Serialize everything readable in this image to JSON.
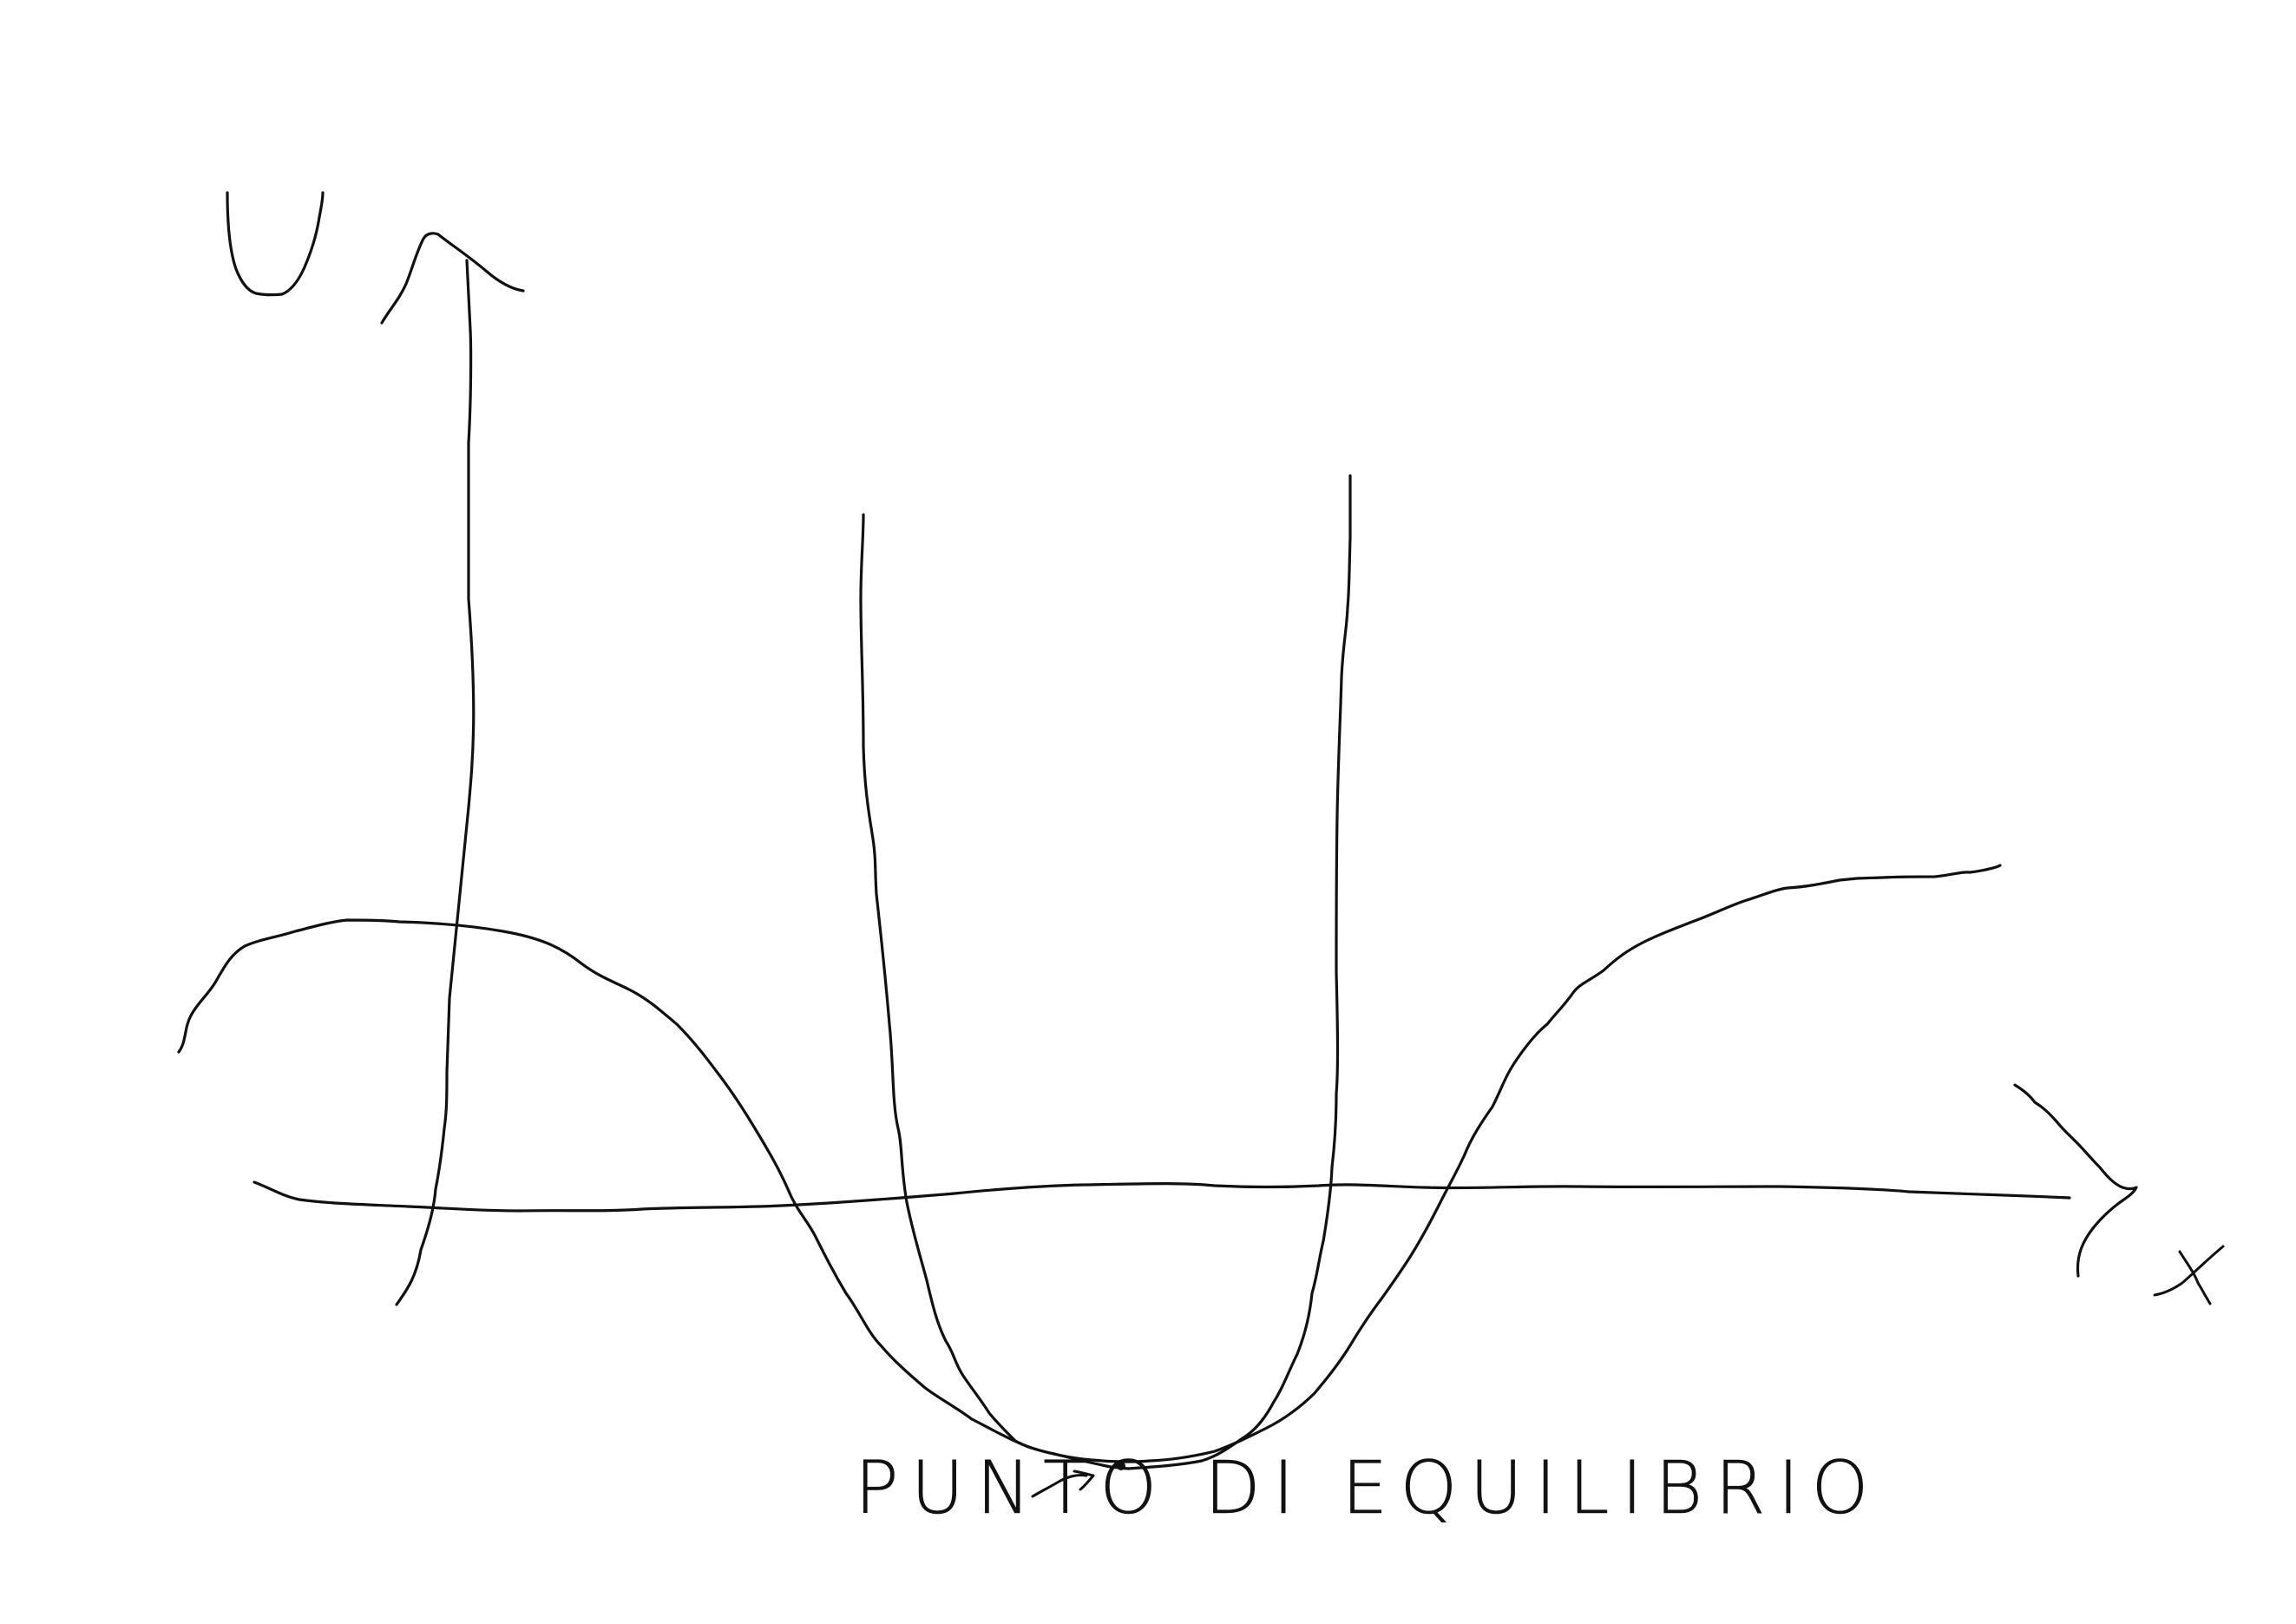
{
  "diagram": {
    "axes": {
      "y_label": "U",
      "x_label": "x"
    },
    "annotation": {
      "text": "PUNTO DI EQUILIBRIO"
    },
    "colors": {
      "ink": "#111111",
      "background": "#ffffff"
    }
  }
}
